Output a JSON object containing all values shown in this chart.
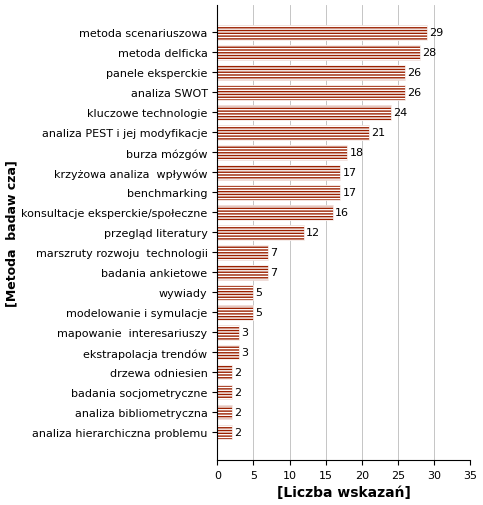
{
  "categories": [
    "analiza hierarchiczna problemu",
    "analiza bibliometryczna",
    "badania socjometryczne",
    "drzewa odniesien",
    "ekstrapolacja trendów",
    "mapowanie  interesariuszy",
    "modelowanie i symulacje",
    "wywiady",
    "badania ankietowe",
    "marszruty rozwoju  technologii",
    "przegląd literatury",
    "konsultacje eksperckie/społeczne",
    "benchmarking",
    "krzyżowa analiza  wpływów",
    "burza mózgów",
    "analiza PEST i jej modyfikacje",
    "kluczowe technologie",
    "analiza SWOT",
    "panele eksperckie",
    "metoda delficka",
    "metoda scenariuszowa"
  ],
  "values": [
    2,
    2,
    2,
    2,
    3,
    3,
    5,
    5,
    7,
    7,
    12,
    16,
    17,
    17,
    18,
    21,
    24,
    26,
    26,
    28,
    29
  ],
  "bar_color": "#9B2000",
  "hatch_color": "#ffffff",
  "xlim": [
    0,
    35
  ],
  "xticks": [
    0,
    5,
    10,
    15,
    20,
    25,
    30,
    35
  ],
  "xlabel": "[Liczba wskazań]",
  "ylabel": "[Metoda  badaw cza]",
  "grid_color": "#bbbbbb",
  "background_color": "#ffffff",
  "border_color": "#000000",
  "ylabel_fontsize": 9,
  "xlabel_fontsize": 10,
  "tick_fontsize": 8,
  "value_fontsize": 8,
  "bar_height": 0.72,
  "figwidth": 4.83,
  "figheight": 5.06,
  "dpi": 100
}
